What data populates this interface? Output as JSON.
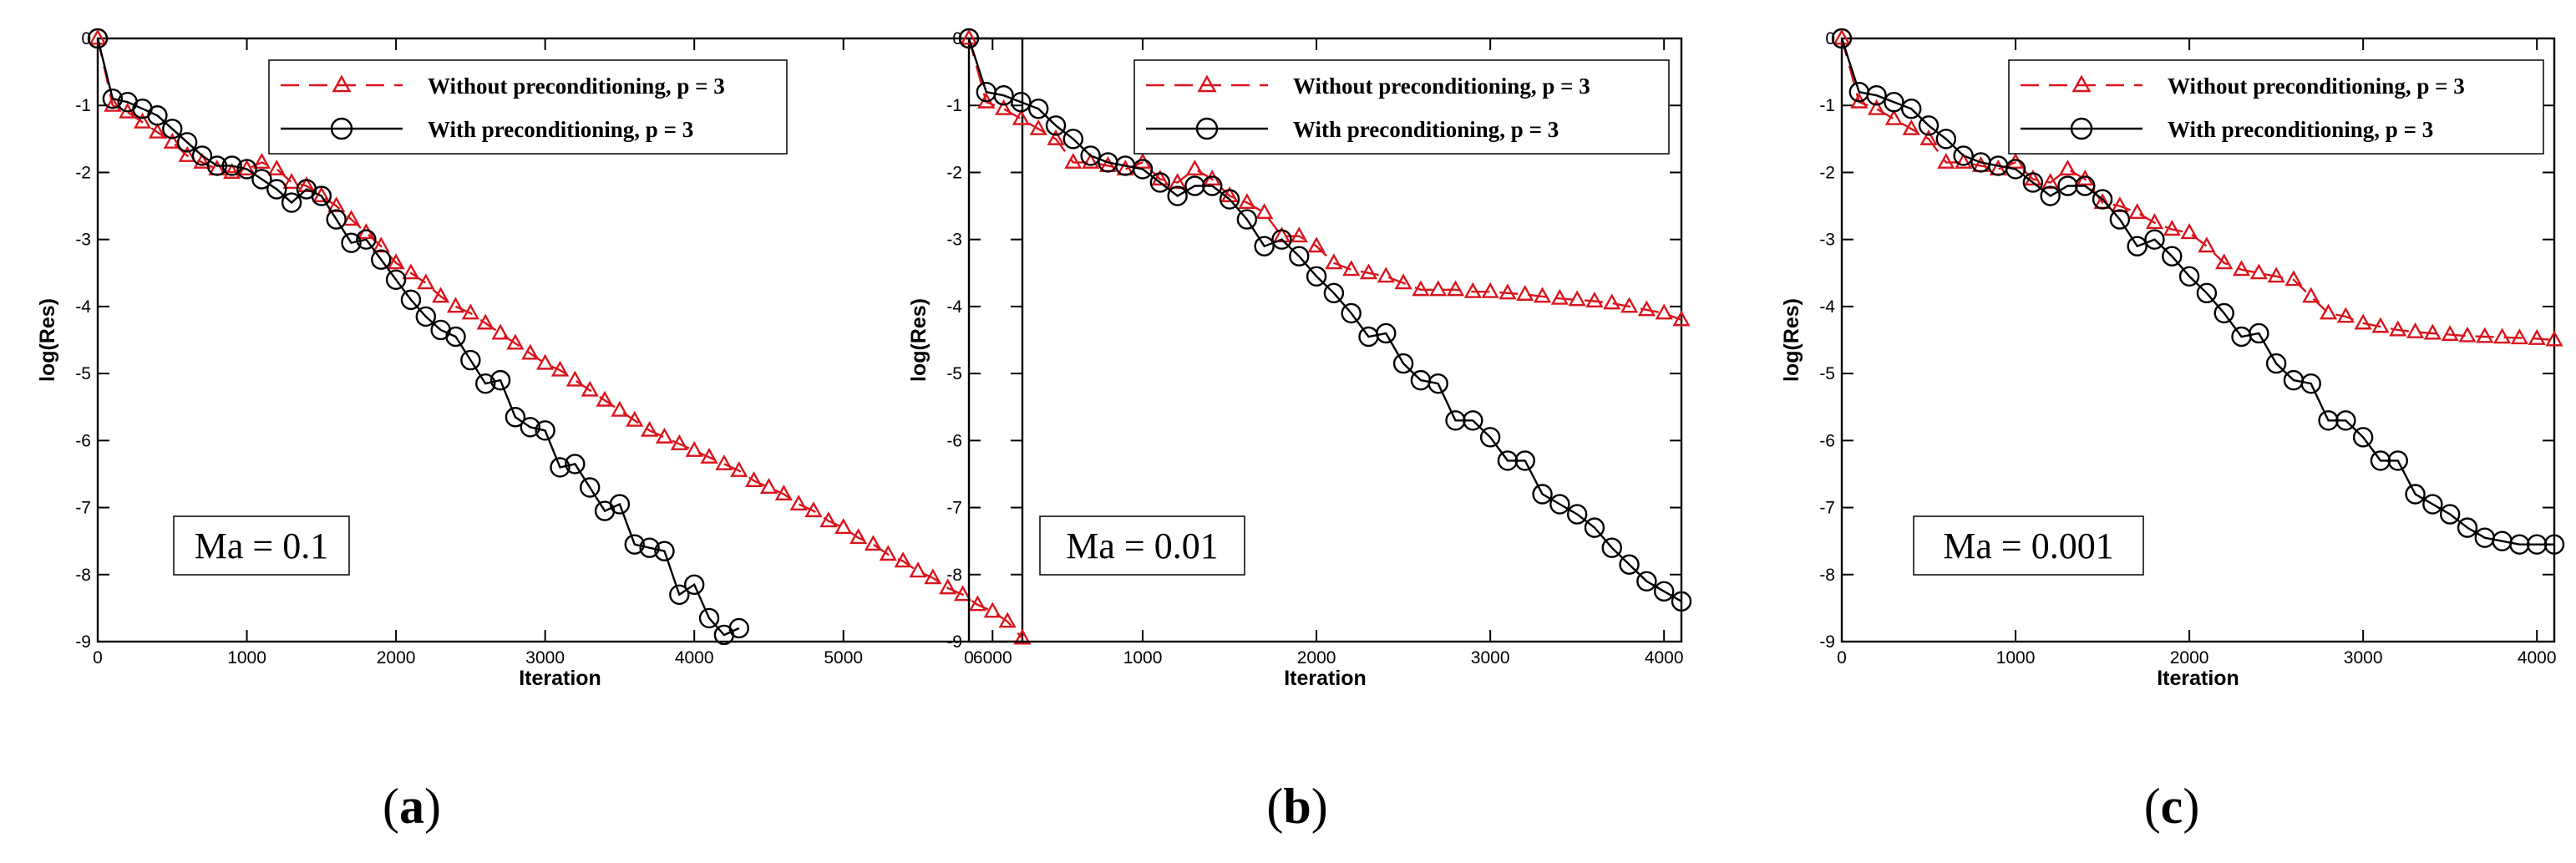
{
  "colors": {
    "without": "#d9141c",
    "with": "#000000",
    "axis": "#000000"
  },
  "chart_data": [
    {
      "type": "line",
      "panel": "a",
      "xlabel": "Iteration",
      "ylabel": "log(Res)",
      "xlim": [
        0,
        6200
      ],
      "ylim": [
        -9,
        0
      ],
      "xticks": [
        0,
        1000,
        2000,
        3000,
        4000,
        5000,
        6000
      ],
      "yticks": [
        0,
        -1,
        -2,
        -3,
        -4,
        -5,
        -6,
        -7,
        -8,
        -9
      ],
      "legend": [
        "Without preconditioning, p = 3",
        "With preconditioning, p = 3"
      ],
      "legend_position": "top-right",
      "annotation": "Ma = 0.1",
      "caption": {
        "open": "(",
        "letter": "a",
        "close": ")"
      },
      "series": [
        {
          "name": "Without preconditioning, p = 3",
          "marker": "triangle",
          "style": "dashed",
          "x": [
            0,
            100,
            200,
            300,
            400,
            500,
            600,
            700,
            800,
            900,
            1000,
            1100,
            1200,
            1300,
            1400,
            1500,
            1600,
            1700,
            1800,
            1900,
            2000,
            2100,
            2200,
            2300,
            2400,
            2500,
            2600,
            2700,
            2800,
            2900,
            3000,
            3100,
            3200,
            3300,
            3400,
            3500,
            3600,
            3700,
            3800,
            3900,
            4000,
            4100,
            4200,
            4300,
            4400,
            4500,
            4600,
            4700,
            4800,
            4900,
            5000,
            5100,
            5200,
            5300,
            5400,
            5500,
            5600,
            5700,
            5800,
            5900,
            6000,
            6100,
            6200
          ],
          "y": [
            0,
            -1.0,
            -1.1,
            -1.25,
            -1.4,
            -1.55,
            -1.75,
            -1.85,
            -1.95,
            -2.0,
            -1.95,
            -1.85,
            -1.95,
            -2.15,
            -2.2,
            -2.35,
            -2.5,
            -2.7,
            -2.9,
            -3.1,
            -3.35,
            -3.5,
            -3.65,
            -3.85,
            -4.0,
            -4.1,
            -4.25,
            -4.4,
            -4.55,
            -4.7,
            -4.85,
            -4.95,
            -5.1,
            -5.25,
            -5.4,
            -5.55,
            -5.7,
            -5.85,
            -5.95,
            -6.05,
            -6.15,
            -6.25,
            -6.35,
            -6.45,
            -6.6,
            -6.7,
            -6.8,
            -6.95,
            -7.05,
            -7.2,
            -7.3,
            -7.45,
            -7.55,
            -7.7,
            -7.8,
            -7.95,
            -8.05,
            -8.2,
            -8.3,
            -8.45,
            -8.55,
            -8.7,
            -8.95
          ]
        },
        {
          "name": "With preconditioning, p = 3",
          "marker": "circle",
          "style": "solid",
          "x": [
            0,
            100,
            200,
            300,
            400,
            500,
            600,
            700,
            800,
            900,
            1000,
            1100,
            1200,
            1300,
            1400,
            1500,
            1600,
            1700,
            1800,
            1900,
            2000,
            2100,
            2200,
            2300,
            2400,
            2500,
            2600,
            2700,
            2800,
            2900,
            3000,
            3100,
            3200,
            3300,
            3400,
            3500,
            3600,
            3700,
            3800,
            3900,
            4000,
            4100,
            4200,
            4300
          ],
          "y": [
            0,
            -0.9,
            -0.95,
            -1.05,
            -1.15,
            -1.35,
            -1.55,
            -1.75,
            -1.9,
            -1.9,
            -1.95,
            -2.1,
            -2.25,
            -2.45,
            -2.25,
            -2.35,
            -2.7,
            -3.05,
            -3.0,
            -3.3,
            -3.6,
            -3.9,
            -4.15,
            -4.35,
            -4.45,
            -4.8,
            -5.15,
            -5.1,
            -5.65,
            -5.8,
            -5.85,
            -6.4,
            -6.35,
            -6.7,
            -7.05,
            -6.95,
            -7.55,
            -7.6,
            -7.65,
            -8.3,
            -8.15,
            -8.65,
            -8.9,
            -8.8
          ]
        }
      ]
    },
    {
      "type": "line",
      "panel": "b",
      "xlabel": "Iteration",
      "ylabel": "log(Res)",
      "xlim": [
        0,
        4100
      ],
      "ylim": [
        -9,
        0
      ],
      "xticks": [
        0,
        1000,
        2000,
        3000,
        4000
      ],
      "yticks": [
        0,
        -1,
        -2,
        -3,
        -4,
        -5,
        -6,
        -7,
        -8,
        -9
      ],
      "legend": [
        "Without preconditioning, p = 3",
        "With preconditioning, p = 3"
      ],
      "legend_position": "top-right",
      "annotation": "Ma = 0.01",
      "caption": {
        "open": "(",
        "letter": "b",
        "close": ")"
      },
      "series": [
        {
          "name": "Without preconditioning, p = 3",
          "marker": "triangle",
          "style": "dashed",
          "x": [
            0,
            100,
            200,
            300,
            400,
            500,
            600,
            700,
            800,
            900,
            1000,
            1100,
            1200,
            1300,
            1400,
            1500,
            1600,
            1700,
            1800,
            1900,
            2000,
            2100,
            2200,
            2300,
            2400,
            2500,
            2600,
            2700,
            2800,
            2900,
            3000,
            3100,
            3200,
            3300,
            3400,
            3500,
            3600,
            3700,
            3800,
            3900,
            4000,
            4100
          ],
          "y": [
            0,
            -0.95,
            -1.05,
            -1.2,
            -1.35,
            -1.5,
            -1.85,
            -1.85,
            -1.9,
            -1.95,
            -1.85,
            -2.1,
            -2.15,
            -1.95,
            -2.1,
            -2.35,
            -2.45,
            -2.6,
            -2.95,
            -2.95,
            -3.1,
            -3.35,
            -3.45,
            -3.5,
            -3.55,
            -3.65,
            -3.75,
            -3.75,
            -3.75,
            -3.78,
            -3.78,
            -3.8,
            -3.82,
            -3.85,
            -3.88,
            -3.9,
            -3.92,
            -3.95,
            -4.0,
            -4.05,
            -4.1,
            -4.2
          ]
        },
        {
          "name": "With preconditioning, p = 3",
          "marker": "circle",
          "style": "solid",
          "x": [
            0,
            100,
            200,
            300,
            400,
            500,
            600,
            700,
            800,
            900,
            1000,
            1100,
            1200,
            1300,
            1400,
            1500,
            1600,
            1700,
            1800,
            1900,
            2000,
            2100,
            2200,
            2300,
            2400,
            2500,
            2600,
            2700,
            2800,
            2900,
            3000,
            3100,
            3200,
            3300,
            3400,
            3500,
            3600,
            3700,
            3800,
            3900,
            4000,
            4100
          ],
          "y": [
            0,
            -0.8,
            -0.85,
            -0.95,
            -1.05,
            -1.3,
            -1.5,
            -1.75,
            -1.85,
            -1.9,
            -1.95,
            -2.15,
            -2.35,
            -2.2,
            -2.2,
            -2.4,
            -2.7,
            -3.1,
            -3.0,
            -3.25,
            -3.55,
            -3.8,
            -4.1,
            -4.45,
            -4.4,
            -4.85,
            -5.1,
            -5.15,
            -5.7,
            -5.7,
            -5.95,
            -6.3,
            -6.3,
            -6.8,
            -6.95,
            -7.1,
            -7.3,
            -7.6,
            -7.85,
            -8.1,
            -8.25,
            -8.4
          ]
        }
      ]
    },
    {
      "type": "line",
      "panel": "c",
      "xlabel": "Iteration",
      "ylabel": "log(Res)",
      "xlim": [
        0,
        4100
      ],
      "ylim": [
        -9,
        0
      ],
      "xticks": [
        0,
        1000,
        2000,
        3000,
        4000
      ],
      "yticks": [
        0,
        -1,
        -2,
        -3,
        -4,
        -5,
        -6,
        -7,
        -8,
        -9
      ],
      "legend": [
        "Without preconditioning, p = 3",
        "With preconditioning, p = 3"
      ],
      "legend_position": "top-right",
      "annotation": "Ma = 0.001",
      "caption": {
        "open": "(",
        "letter": "c",
        "close": ")"
      },
      "series": [
        {
          "name": "Without preconditioning, p = 3",
          "marker": "triangle",
          "style": "dashed",
          "x": [
            0,
            100,
            200,
            300,
            400,
            500,
            600,
            700,
            800,
            900,
            1000,
            1100,
            1200,
            1300,
            1400,
            1500,
            1600,
            1700,
            1800,
            1900,
            2000,
            2100,
            2200,
            2300,
            2400,
            2500,
            2600,
            2700,
            2800,
            2900,
            3000,
            3100,
            3200,
            3300,
            3400,
            3500,
            3600,
            3700,
            3800,
            3900,
            4000,
            4100
          ],
          "y": [
            0,
            -0.95,
            -1.05,
            -1.2,
            -1.35,
            -1.5,
            -1.85,
            -1.85,
            -1.9,
            -1.95,
            -1.85,
            -2.1,
            -2.15,
            -1.95,
            -2.1,
            -2.45,
            -2.5,
            -2.6,
            -2.75,
            -2.85,
            -2.9,
            -3.1,
            -3.35,
            -3.45,
            -3.5,
            -3.55,
            -3.6,
            -3.85,
            -4.1,
            -4.15,
            -4.25,
            -4.3,
            -4.35,
            -4.38,
            -4.4,
            -4.42,
            -4.44,
            -4.45,
            -4.46,
            -4.47,
            -4.48,
            -4.5
          ]
        },
        {
          "name": "With preconditioning, p = 3",
          "marker": "circle",
          "style": "solid",
          "x": [
            0,
            100,
            200,
            300,
            400,
            500,
            600,
            700,
            800,
            900,
            1000,
            1100,
            1200,
            1300,
            1400,
            1500,
            1600,
            1700,
            1800,
            1900,
            2000,
            2100,
            2200,
            2300,
            2400,
            2500,
            2600,
            2700,
            2800,
            2900,
            3000,
            3100,
            3200,
            3300,
            3400,
            3500,
            3600,
            3700,
            3800,
            3900,
            4000,
            4100
          ],
          "y": [
            0,
            -0.8,
            -0.85,
            -0.95,
            -1.05,
            -1.3,
            -1.5,
            -1.75,
            -1.85,
            -1.9,
            -1.95,
            -2.15,
            -2.35,
            -2.2,
            -2.2,
            -2.4,
            -2.7,
            -3.1,
            -3.0,
            -3.25,
            -3.55,
            -3.8,
            -4.1,
            -4.45,
            -4.4,
            -4.85,
            -5.1,
            -5.15,
            -5.7,
            -5.7,
            -5.95,
            -6.3,
            -6.3,
            -6.8,
            -6.95,
            -7.1,
            -7.3,
            -7.45,
            -7.5,
            -7.55,
            -7.55,
            -7.55
          ]
        }
      ]
    }
  ]
}
